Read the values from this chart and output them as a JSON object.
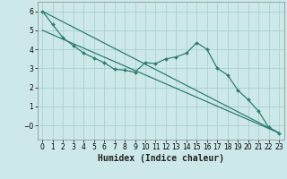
{
  "title": "",
  "xlabel": "Humidex (Indice chaleur)",
  "background_color": "#cde8e8",
  "grid_color": "#aacfcf",
  "line_color": "#2e7d72",
  "xlim": [
    -0.5,
    23.5
  ],
  "ylim": [
    -0.75,
    6.5
  ],
  "yticks": [
    0,
    1,
    2,
    3,
    4,
    5,
    6
  ],
  "ytick_labels": [
    "−0",
    "1",
    "2",
    "3",
    "4",
    "5",
    "6"
  ],
  "xticks": [
    0,
    1,
    2,
    3,
    4,
    5,
    6,
    7,
    8,
    9,
    10,
    11,
    12,
    13,
    14,
    15,
    16,
    17,
    18,
    19,
    20,
    21,
    22,
    23
  ],
  "data_line": [
    6.0,
    5.3,
    4.6,
    4.2,
    3.8,
    3.55,
    3.3,
    2.95,
    2.9,
    2.8,
    3.3,
    3.25,
    3.5,
    3.6,
    3.8,
    4.35,
    4.0,
    3.0,
    2.65,
    1.85,
    1.35,
    0.75,
    -0.1,
    -0.4
  ],
  "line1_start_x": 0,
  "line1_start_y": 6.0,
  "line1_end_x": 23,
  "line1_end_y": -0.4,
  "line2_start_x": 0,
  "line2_start_y": 5.0,
  "line2_end_x": 23,
  "line2_end_y": -0.4,
  "tick_fontsize": 5.5,
  "xlabel_fontsize": 7.0,
  "marker_size": 2.0,
  "line_width": 0.9
}
